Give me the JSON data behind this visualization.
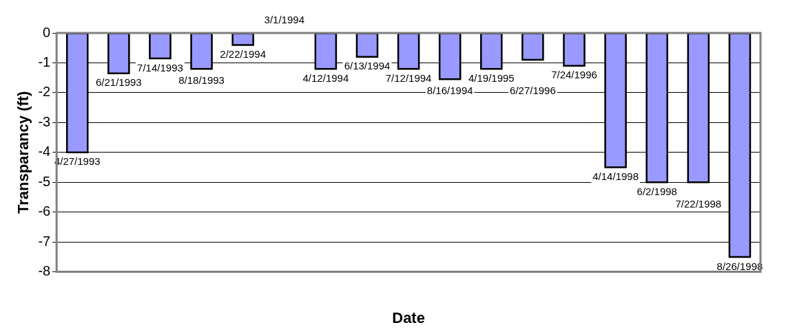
{
  "chart_data": {
    "type": "bar",
    "xlabel": "Date",
    "ylabel": "Transparancy (ft)",
    "categories": [
      "4/27/1993",
      "6/21/1993",
      "7/14/1993",
      "8/18/1993",
      "2/22/1994",
      "3/1/1994",
      "4/12/1994",
      "6/13/1994",
      "7/12/1994",
      "8/16/1994",
      "4/19/1995",
      "6/27/1996",
      "7/24/1996",
      "4/14/1998",
      "6/2/1998",
      "7/22/1998",
      "8/26/1998"
    ],
    "values": [
      -4.0,
      -1.35,
      -0.85,
      -1.2,
      -0.4,
      0,
      -1.2,
      -0.8,
      -1.2,
      -1.55,
      -1.2,
      -0.9,
      -1.1,
      -4.5,
      -5.0,
      -5.0,
      -7.5
    ],
    "color": "#9999ff",
    "ylim": [
      -8,
      0
    ],
    "yticks": [
      0,
      -1,
      -2,
      -3,
      -4,
      -5,
      -6,
      -7,
      -8
    ],
    "grid": "y",
    "tick_labels": "y"
  }
}
